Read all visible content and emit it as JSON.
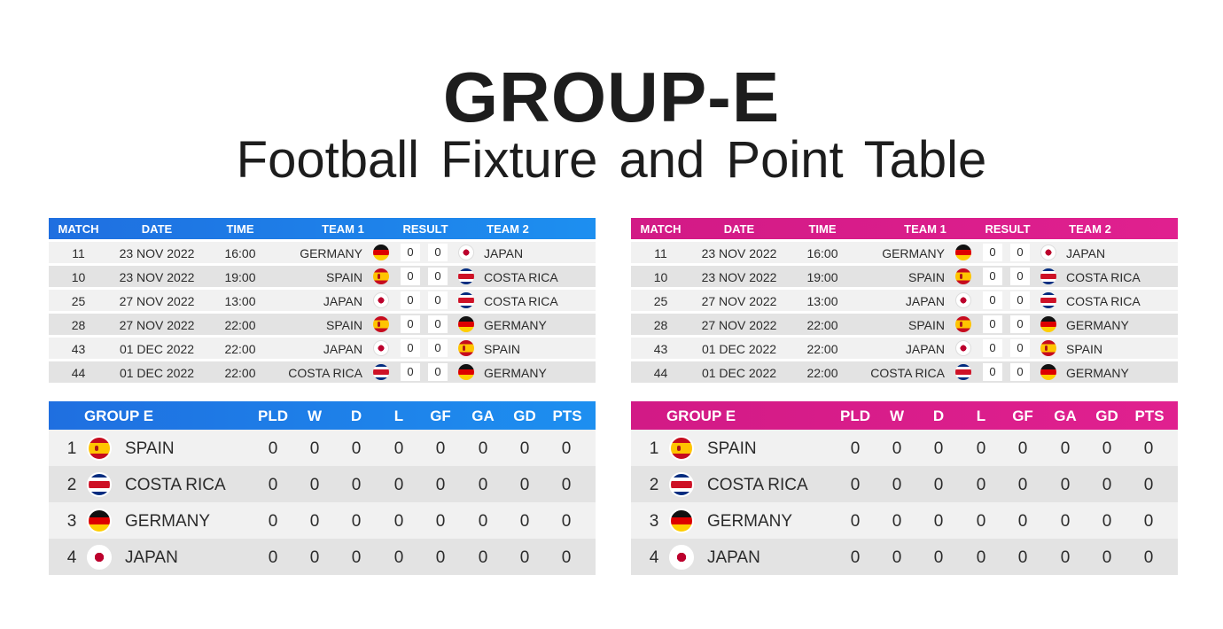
{
  "title": "GROUP-E",
  "subtitle": "Football Fixture  and  Point  Table",
  "colors": {
    "blue": "#1d7fe8",
    "pink": "#dc1e8c",
    "row_light": "#f1f1f1",
    "row_dark": "#e3e3e3"
  },
  "fixture_headers": [
    "MATCH",
    "DATE",
    "TIME",
    "TEAM 1",
    "RESULT",
    "TEAM 2"
  ],
  "fixtures": [
    {
      "match": "11",
      "date": "23 NOV 2022",
      "time": "16:00",
      "team1": "GERMANY",
      "flag1": "germany-flag-icon",
      "score1": "0",
      "score2": "0",
      "team2": "JAPAN",
      "flag2": "japan-flag-icon"
    },
    {
      "match": "10",
      "date": "23 NOV 2022",
      "time": "19:00",
      "team1": "SPAIN",
      "flag1": "spain-flag-icon",
      "score1": "0",
      "score2": "0",
      "team2": "COSTA RICA",
      "flag2": "costa-rica-flag-icon"
    },
    {
      "match": "25",
      "date": "27 NOV 2022",
      "time": "13:00",
      "team1": "JAPAN",
      "flag1": "japan-flag-icon",
      "score1": "0",
      "score2": "0",
      "team2": "COSTA RICA",
      "flag2": "costa-rica-flag-icon"
    },
    {
      "match": "28",
      "date": "27 NOV 2022",
      "time": "22:00",
      "team1": "SPAIN",
      "flag1": "spain-flag-icon",
      "score1": "0",
      "score2": "0",
      "team2": "GERMANY",
      "flag2": "germany-flag-icon"
    },
    {
      "match": "43",
      "date": "01 DEC 2022",
      "time": "22:00",
      "team1": "JAPAN",
      "flag1": "japan-flag-icon",
      "score1": "0",
      "score2": "0",
      "team2": "SPAIN",
      "flag2": "spain-flag-icon"
    },
    {
      "match": "44",
      "date": "01 DEC 2022",
      "time": "22:00",
      "team1": "COSTA RICA",
      "flag1": "costa-rica-flag-icon",
      "score1": "0",
      "score2": "0",
      "team2": "GERMANY",
      "flag2": "germany-flag-icon"
    }
  ],
  "standings_headers": [
    "GROUP E",
    "PLD",
    "W",
    "D",
    "L",
    "GF",
    "GA",
    "GD",
    "PTS"
  ],
  "standings": [
    {
      "pos": "1",
      "team": "SPAIN",
      "flag": "spain-flag-icon",
      "stats": [
        "0",
        "0",
        "0",
        "0",
        "0",
        "0",
        "0",
        "0"
      ]
    },
    {
      "pos": "2",
      "team": "COSTA RICA",
      "flag": "costa-rica-flag-icon",
      "stats": [
        "0",
        "0",
        "0",
        "0",
        "0",
        "0",
        "0",
        "0"
      ]
    },
    {
      "pos": "3",
      "team": "GERMANY",
      "flag": "germany-flag-icon",
      "stats": [
        "0",
        "0",
        "0",
        "0",
        "0",
        "0",
        "0",
        "0"
      ]
    },
    {
      "pos": "4",
      "team": "JAPAN",
      "flag": "japan-flag-icon",
      "stats": [
        "0",
        "0",
        "0",
        "0",
        "0",
        "0",
        "0",
        "0"
      ]
    }
  ]
}
